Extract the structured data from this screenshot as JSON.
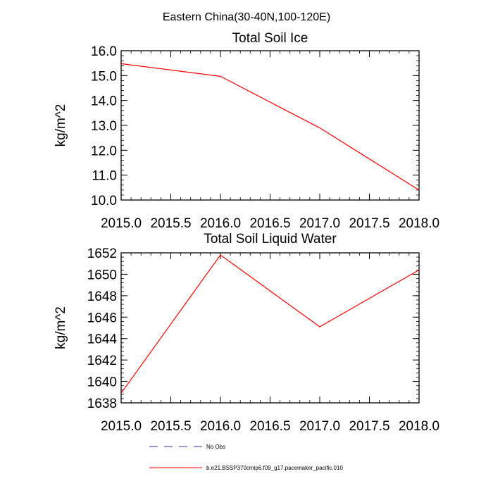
{
  "page_title": "Eastern China(30-40N,100-120E)",
  "chart_data": [
    {
      "type": "line",
      "title": "Total Soil Ice",
      "xlabel": "",
      "ylabel": "kg/m^2",
      "x": [
        2015.0,
        2016.0,
        2017.0,
        2018.0
      ],
      "xlim": [
        2015.0,
        2018.0
      ],
      "ylim": [
        10.0,
        16.0
      ],
      "xticks": [
        "2015.0",
        "2015.5",
        "2016.0",
        "2016.5",
        "2017.0",
        "2017.5",
        "2018.0"
      ],
      "yticks": [
        "10.0",
        "11.0",
        "12.0",
        "13.0",
        "14.0",
        "15.0",
        "16.0"
      ],
      "grid": false,
      "series": [
        {
          "name": "b.e21.BSSP370cmip6.f09_g17.pacemaker_pacific.010",
          "color": "#ff0000",
          "values": [
            15.48,
            14.97,
            12.9,
            10.4
          ]
        }
      ]
    },
    {
      "type": "line",
      "title": "Total Soil Liquid Water",
      "xlabel": "",
      "ylabel": "kg/m^2",
      "x": [
        2015.0,
        2016.0,
        2017.0,
        2018.0
      ],
      "xlim": [
        2015.0,
        2018.0
      ],
      "ylim": [
        1638,
        1652
      ],
      "xticks": [
        "2015.0",
        "2015.5",
        "2016.0",
        "2016.5",
        "2017.0",
        "2017.5",
        "2018.0"
      ],
      "yticks": [
        "1638",
        "1640",
        "1642",
        "1644",
        "1646",
        "1648",
        "1650",
        "1652"
      ],
      "grid": false,
      "series": [
        {
          "name": "b.e21.BSSP370cmip6.f09_g17.pacemaker_pacific.010",
          "color": "#ff0000",
          "values": [
            1638.9,
            1651.8,
            1645.1,
            1650.4
          ]
        }
      ]
    }
  ],
  "legend": {
    "placement": "bottom",
    "items": [
      {
        "label": "No Obs",
        "color": "#3333aa",
        "style": "dashed"
      },
      {
        "label": "b.e21.BSSP370cmip6.f09_g17.pacemaker_pacific.010",
        "color": "#ff0000",
        "style": "solid"
      }
    ]
  }
}
